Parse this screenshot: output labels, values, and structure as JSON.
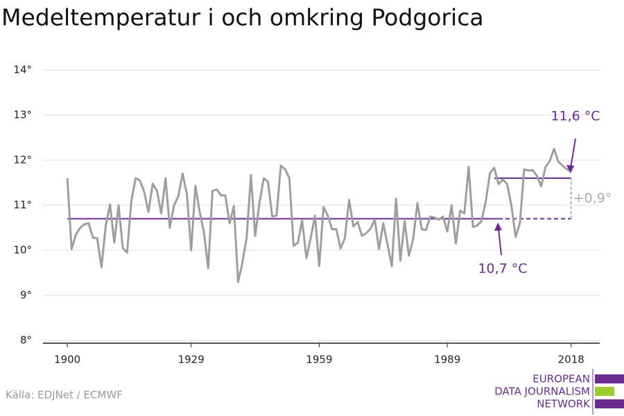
{
  "chart_data": {
    "type": "line",
    "title": "Medeltemperatur i och omkring Podgorica",
    "source": "Källa: EDJNet / ECMWF",
    "logo": [
      "EUROPEAN",
      "DATA JOURNALISM",
      "NETWORK"
    ],
    "x": [
      1900,
      1901,
      1902,
      1903,
      1904,
      1905,
      1906,
      1907,
      1908,
      1909,
      1910,
      1911,
      1912,
      1913,
      1914,
      1915,
      1916,
      1917,
      1918,
      1919,
      1920,
      1921,
      1922,
      1923,
      1924,
      1925,
      1926,
      1927,
      1928,
      1929,
      1930,
      1931,
      1932,
      1933,
      1934,
      1935,
      1936,
      1937,
      1938,
      1939,
      1940,
      1941,
      1942,
      1943,
      1944,
      1945,
      1946,
      1947,
      1948,
      1949,
      1950,
      1951,
      1952,
      1953,
      1954,
      1955,
      1956,
      1957,
      1958,
      1959,
      1960,
      1961,
      1962,
      1963,
      1964,
      1965,
      1966,
      1967,
      1968,
      1969,
      1970,
      1971,
      1972,
      1973,
      1974,
      1975,
      1976,
      1977,
      1978,
      1979,
      1980,
      1981,
      1982,
      1983,
      1984,
      1985,
      1986,
      1987,
      1988,
      1989,
      1990,
      1991,
      1992,
      1993,
      1994,
      1995,
      1996,
      1997,
      1998,
      1999,
      2000,
      2001,
      2002,
      2003,
      2004,
      2005,
      2006,
      2007,
      2008,
      2009,
      2010,
      2011,
      2012,
      2013,
      2014,
      2015,
      2016,
      2017,
      2018
    ],
    "series": [
      {
        "name": "Medeltemperatur",
        "color": "#9e9e9e",
        "values": [
          11.6,
          10.03,
          10.35,
          10.5,
          10.58,
          10.6,
          10.28,
          10.27,
          9.63,
          10.55,
          11.02,
          10.17,
          11.0,
          10.05,
          9.95,
          11.1,
          11.6,
          11.55,
          11.3,
          10.85,
          11.48,
          11.32,
          10.82,
          11.6,
          10.5,
          11.0,
          11.2,
          11.7,
          11.25,
          10.0,
          11.43,
          10.85,
          10.4,
          9.6,
          11.32,
          11.35,
          11.22,
          11.22,
          10.6,
          10.98,
          9.3,
          9.72,
          10.28,
          11.67,
          10.32,
          11.05,
          11.6,
          11.52,
          10.75,
          10.77,
          11.88,
          11.8,
          11.6,
          10.1,
          10.17,
          10.67,
          9.83,
          10.27,
          10.77,
          9.65,
          10.96,
          10.77,
          10.47,
          10.47,
          10.04,
          10.27,
          11.12,
          10.53,
          10.63,
          10.32,
          10.38,
          10.48,
          10.68,
          10.03,
          10.6,
          10.13,
          9.65,
          11.15,
          9.77,
          10.65,
          9.88,
          10.25,
          11.05,
          10.47,
          10.45,
          10.75,
          10.73,
          10.68,
          10.75,
          10.42,
          11.0,
          10.15,
          10.88,
          10.82,
          11.85,
          10.52,
          10.55,
          10.65,
          11.08,
          11.72,
          11.83,
          11.47,
          11.57,
          11.47,
          11.0,
          10.3,
          10.6,
          11.8,
          11.77,
          11.78,
          11.65,
          11.42,
          11.85,
          11.98,
          12.25,
          11.97,
          11.88,
          11.8,
          11.75
        ]
      }
    ],
    "reference_lines": [
      {
        "value": 10.7,
        "from": 1900,
        "to": 2018,
        "dashed_from": 2001,
        "color": "#6b2c91",
        "label": "10,7 °C"
      },
      {
        "value": 11.6,
        "from": 2000,
        "to": 2018,
        "color": "#6b2c91",
        "label": "11,6 °C"
      }
    ],
    "difference_label": "+0,9°",
    "xlim": [
      1894.3,
      2024.7
    ],
    "xticks": [
      1900,
      1929,
      1959,
      1989,
      2018
    ],
    "ylim": [
      7.94,
      14
    ],
    "yticks": [
      {
        "value": 8,
        "label": "8°"
      },
      {
        "value": 9,
        "label": "9°"
      },
      {
        "value": 10,
        "label": "10°"
      },
      {
        "value": 11,
        "label": "11°"
      },
      {
        "value": 12,
        "label": "12°"
      },
      {
        "value": 13,
        "label": "13°"
      },
      {
        "value": 14,
        "label": "14°"
      }
    ],
    "grid": true
  }
}
